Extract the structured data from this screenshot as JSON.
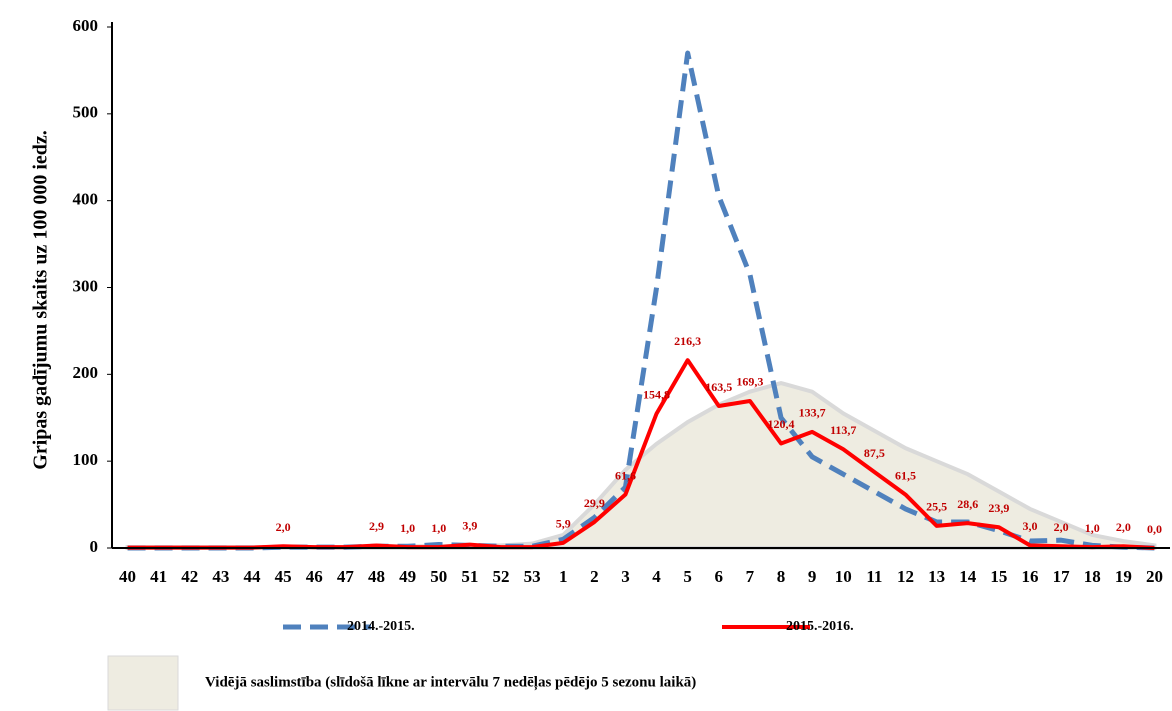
{
  "chart_data": {
    "type": "line",
    "y_label": "Gripas gadījumu skaits uz 100 000 iedz.",
    "categories": [
      "40",
      "41",
      "42",
      "43",
      "44",
      "45",
      "46",
      "47",
      "48",
      "49",
      "50",
      "51",
      "52",
      "53",
      "1",
      "2",
      "3",
      "4",
      "5",
      "6",
      "7",
      "8",
      "9",
      "10",
      "11",
      "12",
      "13",
      "14",
      "15",
      "16",
      "17",
      "18",
      "19",
      "20"
    ],
    "series": [
      {
        "name": "Vidējā saslimstība (slīdošā līkne ar intervālu 7 nedēļas pēdējo 5 sezonu laikā)",
        "kind": "area",
        "color": "#eeece1",
        "edge": "#d9d9d9",
        "values": [
          1,
          1,
          1,
          1,
          1,
          1,
          1,
          1,
          2,
          2,
          2,
          3,
          3,
          5,
          15,
          50,
          90,
          120,
          145,
          165,
          180,
          190,
          180,
          155,
          135,
          115,
          100,
          85,
          65,
          45,
          30,
          15,
          8,
          3
        ]
      },
      {
        "name": "2014.-2015.",
        "kind": "line",
        "dashed": true,
        "color": "#4f81bd",
        "values": [
          0,
          0,
          0,
          0,
          0,
          1,
          1,
          1,
          2,
          2,
          4,
          3,
          2,
          2,
          10,
          35,
          70,
          300,
          570,
          405,
          315,
          150,
          105,
          85,
          65,
          45,
          30,
          30,
          20,
          8,
          9,
          3,
          1,
          0
        ]
      },
      {
        "name": "2015.-2016.",
        "kind": "line",
        "dashed": false,
        "color": "#ff0000",
        "values": [
          0.5,
          0.5,
          0.5,
          0.5,
          0.5,
          2,
          1,
          1,
          2.9,
          1,
          1,
          3.9,
          1,
          1,
          5.9,
          29.9,
          61.6,
          154.8,
          216.3,
          163.5,
          169.3,
          120.4,
          133.7,
          113.7,
          87.5,
          61.5,
          25.5,
          28.6,
          23.9,
          3,
          2,
          1,
          2,
          0
        ],
        "value_labels": [
          null,
          null,
          null,
          null,
          null,
          "2,0",
          null,
          null,
          "2,9",
          "1,0",
          "1,0",
          "3,9",
          null,
          null,
          "5,9",
          "29,9",
          "61,6",
          "154,8",
          "216,3",
          "163,5",
          "169,3",
          "120,4",
          "133,7",
          "113,7",
          "87,5",
          "61,5",
          "25,5",
          "28,6",
          "23,9",
          "3,0",
          "2,0",
          "1,0",
          "2,0",
          "0,0"
        ]
      }
    ],
    "ylim": [
      0,
      600
    ],
    "yticks": [
      0,
      100,
      200,
      300,
      400,
      500,
      600
    ],
    "grid": false
  }
}
